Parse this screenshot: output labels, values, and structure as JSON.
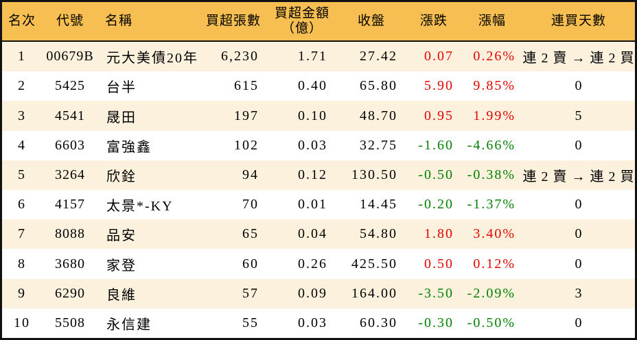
{
  "colors": {
    "header_bg": "#F7BF52",
    "row_alt_bg": "#FBF1DC",
    "row_bg": "#FFFFFF",
    "border": "#111111",
    "text": "#000000",
    "up_red": "#E60000",
    "down_green": "#008000"
  },
  "chart_data": {
    "type": "table",
    "columns": [
      "名次",
      "代號",
      "名稱",
      "買超張數",
      "買超金額\n（億）",
      "收盤",
      "漲跌",
      "漲幅",
      "連買天數"
    ],
    "rows": [
      {
        "rank": "1",
        "code": "00679B",
        "name": "元大美債20年",
        "volume": "6,230",
        "amount": "1.71",
        "close": "27.42",
        "change": "0.07",
        "change_pct": "0.26%",
        "streak": "連 2 賣 → 連 2 買",
        "trend": "up"
      },
      {
        "rank": "2",
        "code": "5425",
        "name": "台半",
        "volume": "615",
        "amount": "0.40",
        "close": "65.80",
        "change": "5.90",
        "change_pct": "9.85%",
        "streak": "0",
        "trend": "up"
      },
      {
        "rank": "3",
        "code": "4541",
        "name": "晟田",
        "volume": "197",
        "amount": "0.10",
        "close": "48.70",
        "change": "0.95",
        "change_pct": "1.99%",
        "streak": "5",
        "trend": "up"
      },
      {
        "rank": "4",
        "code": "6603",
        "name": "富強鑫",
        "volume": "102",
        "amount": "0.03",
        "close": "32.75",
        "change": "-1.60",
        "change_pct": "-4.66%",
        "streak": "0",
        "trend": "down"
      },
      {
        "rank": "5",
        "code": "3264",
        "name": "欣銓",
        "volume": "94",
        "amount": "0.12",
        "close": "130.50",
        "change": "-0.50",
        "change_pct": "-0.38%",
        "streak": "連 2 賣 → 連 2 買",
        "trend": "down"
      },
      {
        "rank": "6",
        "code": "4157",
        "name": "太景*-KY",
        "volume": "70",
        "amount": "0.01",
        "close": "14.45",
        "change": "-0.20",
        "change_pct": "-1.37%",
        "streak": "0",
        "trend": "down"
      },
      {
        "rank": "7",
        "code": "8088",
        "name": "品安",
        "volume": "65",
        "amount": "0.04",
        "close": "54.80",
        "change": "1.80",
        "change_pct": "3.40%",
        "streak": "0",
        "trend": "up"
      },
      {
        "rank": "8",
        "code": "3680",
        "name": "家登",
        "volume": "60",
        "amount": "0.26",
        "close": "425.50",
        "change": "0.50",
        "change_pct": "0.12%",
        "streak": "0",
        "trend": "up"
      },
      {
        "rank": "9",
        "code": "6290",
        "name": "良維",
        "volume": "57",
        "amount": "0.09",
        "close": "164.00",
        "change": "-3.50",
        "change_pct": "-2.09%",
        "streak": "3",
        "trend": "down"
      },
      {
        "rank": "10",
        "code": "5508",
        "name": "永信建",
        "volume": "55",
        "amount": "0.03",
        "close": "60.30",
        "change": "-0.30",
        "change_pct": "-0.50%",
        "streak": "0",
        "trend": "down"
      }
    ]
  }
}
